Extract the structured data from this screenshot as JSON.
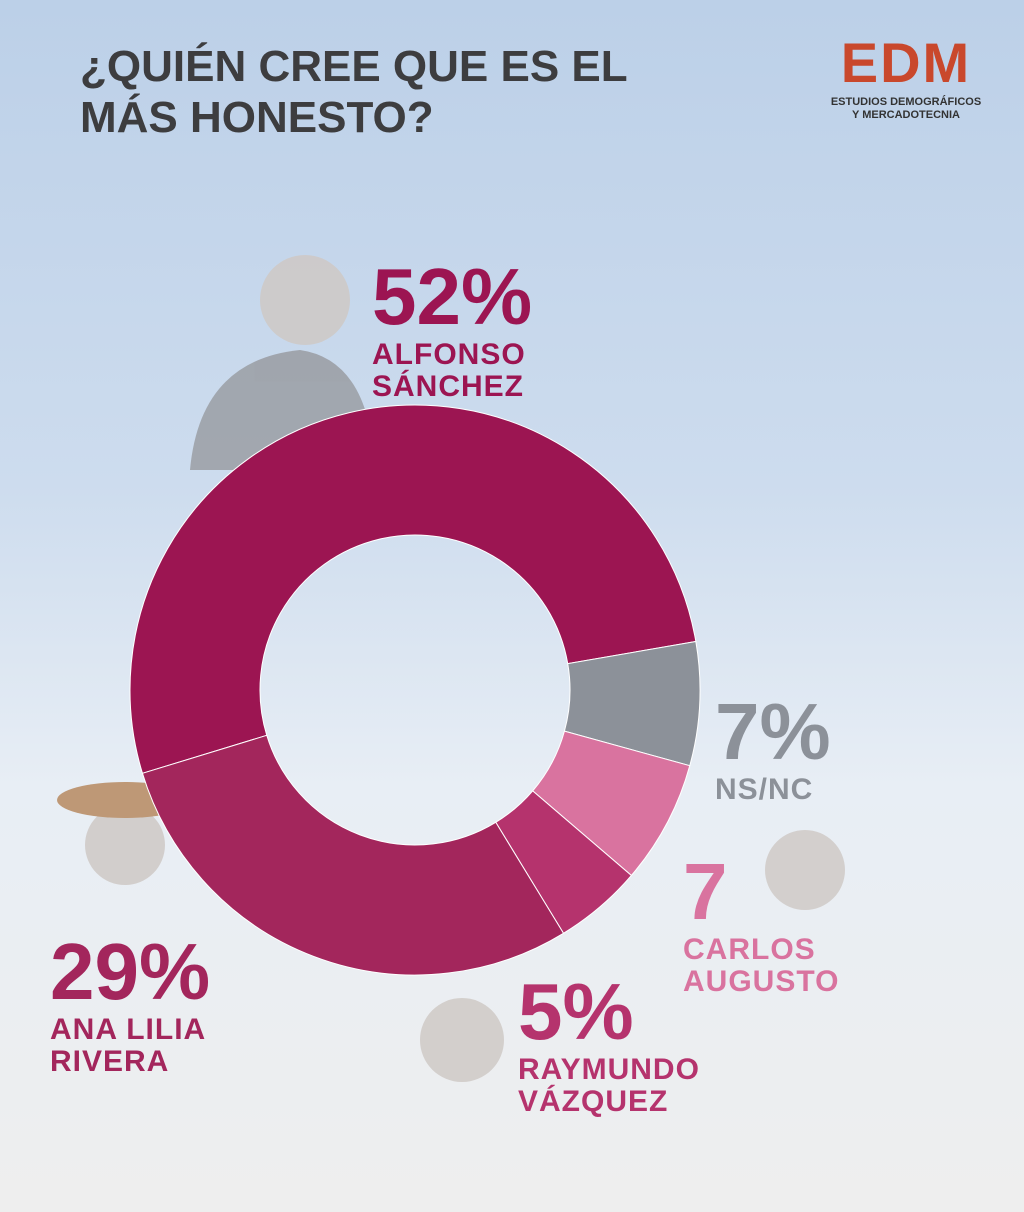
{
  "chart_data": {
    "type": "donut",
    "title": "¿QUIÉN CREE QUE ES EL MÁS HONESTO?",
    "categories": [
      "ALFONSO SÁNCHEZ",
      "NS/NC",
      "CARLOS AUGUSTO",
      "RAYMUNDO VÁZQUEZ",
      "ANA LILIA RIVERA"
    ],
    "values": [
      52,
      7,
      7,
      5,
      29
    ],
    "value_labels": [
      "52%",
      "7%",
      "7",
      "5%",
      "29%"
    ],
    "colors": [
      "#9c1552",
      "#8c9199",
      "#d9739f",
      "#b5336d",
      "#a3265c"
    ]
  },
  "logo": {
    "name": "EDM",
    "subtitle": "ESTUDIOS DEMOGRÁFICOS Y MERCADOTECNIA"
  }
}
